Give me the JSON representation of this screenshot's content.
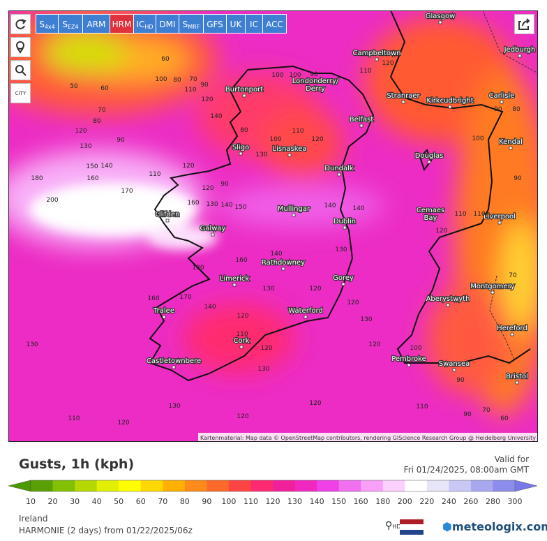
{
  "toolbar": {
    "models": [
      {
        "text": "S",
        "sub": "4x4"
      },
      {
        "text": "S",
        "sub": "EZ4"
      },
      {
        "text": "ARM"
      },
      {
        "text": "HRM",
        "active": true
      },
      {
        "text": "IC",
        "sub": "HD"
      },
      {
        "text": "DMI"
      },
      {
        "text": "S",
        "sub": "MRF"
      },
      {
        "text": "GFS"
      },
      {
        "text": "UK"
      },
      {
        "text": "IC"
      },
      {
        "text": "ACC"
      }
    ],
    "city_toggle": "CITY"
  },
  "map": {
    "cities": [
      "Glasgow",
      "Campbeltown",
      "Jedburgh",
      "Burtonport",
      "Londonderry/",
      "Derry",
      "Stranraer",
      "Kirkcudbright",
      "Carlisle",
      "Belfast",
      "Sligo",
      "Lisnaskea",
      "Douglas",
      "Kendal",
      "Dundalk",
      "Mullingar",
      "Cemaes",
      "Bay",
      "Liverpool",
      "Clifden",
      "Galway",
      "Dublin",
      "Rathdowney",
      "Limerick",
      "Gorey",
      "Montgomery",
      "Aberystwyth",
      "Waterford",
      "Tralee",
      "Hereford",
      "Cork",
      "Pembroke",
      "Swansea",
      "Castletownbere",
      "Bristol"
    ],
    "contour_labels": [
      "60",
      "50",
      "60",
      "100",
      "80",
      "70",
      "90",
      "110",
      "120",
      "70",
      "80",
      "120",
      "90",
      "130",
      "150",
      "140",
      "180",
      "160",
      "170",
      "200",
      "110",
      "120",
      "90",
      "130",
      "140",
      "150",
      "160",
      "140",
      "140",
      "130",
      "140",
      "160",
      "130",
      "120",
      "130",
      "120",
      "130",
      "160",
      "170",
      "140",
      "120",
      "130",
      "110",
      "120",
      "130",
      "120",
      "110",
      "70",
      "100",
      "90",
      "120",
      "130",
      "120",
      "110",
      "120",
      "110",
      "90",
      "70",
      "60",
      "110",
      "120",
      "100",
      "110",
      "120",
      "100",
      "130",
      "90",
      "80",
      "100",
      "90",
      "110",
      "120",
      "120",
      "80",
      "100",
      "90",
      "140"
    ],
    "attribution": "Kartenmaterial: Map data © OpenStreetMap contributors, rendering GIScience Research Group @ Heidelberg University"
  },
  "legend": {
    "title": "Gusts, 1h (kph)",
    "valid_label": "Valid for",
    "valid_time": "Fri 01/24/2025, 08:00am GMT",
    "labels": [
      "10",
      "20",
      "30",
      "40",
      "50",
      "60",
      "70",
      "80",
      "90",
      "100",
      "110",
      "120",
      "130",
      "140",
      "150",
      "160",
      "180",
      "200",
      "220",
      "240",
      "260",
      "280",
      "300"
    ],
    "colors": [
      "#5aa000",
      "#82c000",
      "#b4d800",
      "#e0f000",
      "#ffff00",
      "#ffd800",
      "#ffb000",
      "#ff8c1a",
      "#ff6a2a",
      "#ff4444",
      "#ff2a70",
      "#f0209a",
      "#f028c0",
      "#f040e8",
      "#f070f0",
      "#f8a0f8",
      "#fcd0fc",
      "#ffffff",
      "#e6e6f8",
      "#c8c8f4",
      "#a8a8f0",
      "#8c8cec"
    ],
    "low_color": "#4a9a00",
    "high_color": "#7878e8",
    "region": "Ireland",
    "model_run": "HARMONIE (2 days) from 01/22/2025/06z",
    "hd": "HD",
    "brand": "meteologix.com"
  }
}
